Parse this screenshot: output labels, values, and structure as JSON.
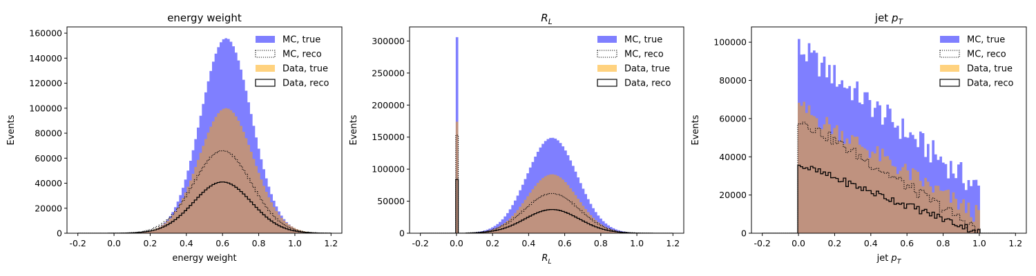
{
  "colors": {
    "mc_true": "#0000ff",
    "data_true": "#ffa500",
    "mc_reco": "#000000",
    "data_reco": "#000000"
  },
  "legend": {
    "placement": "top-right",
    "entries": [
      {
        "key": "mc_true",
        "label": "MC, true",
        "style": "filled"
      },
      {
        "key": "mc_reco",
        "label": "MC, reco",
        "style": "dotted-step"
      },
      {
        "key": "data_true",
        "label": "Data, true",
        "style": "filled"
      },
      {
        "key": "data_reco",
        "label": "Data, reco",
        "style": "solid-step"
      }
    ]
  },
  "chart_data": [
    {
      "type": "histogram",
      "title": "energy weight",
      "xlabel": "energy weight",
      "ylabel": "Events",
      "xlim": [
        -0.26,
        1.26
      ],
      "ylim": [
        0,
        165000
      ],
      "xticks": [
        -0.2,
        0.0,
        0.2,
        0.4,
        0.6,
        0.8,
        1.0,
        1.2
      ],
      "yticks": [
        0,
        20000,
        40000,
        60000,
        80000,
        100000,
        120000,
        140000,
        160000
      ],
      "grid": false,
      "bins": {
        "start": -0.2,
        "end": 1.2,
        "count": 100
      },
      "series": [
        {
          "key": "mc_true",
          "shape": "gaussian",
          "center": 0.62,
          "sigma": 0.14,
          "peak": 156000
        },
        {
          "key": "data_true",
          "shape": "gaussian",
          "center": 0.62,
          "sigma": 0.15,
          "peak": 100000
        },
        {
          "key": "mc_reco",
          "shape": "gaussian",
          "center": 0.6,
          "sigma": 0.16,
          "peak": 66000
        },
        {
          "key": "data_reco",
          "shape": "gaussian",
          "center": 0.6,
          "sigma": 0.16,
          "peak": 41000
        }
      ]
    },
    {
      "type": "histogram",
      "title": "R_L",
      "xlabel": "R_L",
      "ylabel": "Events",
      "xlim": [
        -0.26,
        1.26
      ],
      "ylim": [
        0,
        322000
      ],
      "xticks": [
        -0.2,
        0.0,
        0.2,
        0.4,
        0.6,
        0.8,
        1.0,
        1.2
      ],
      "yticks": [
        0,
        50000,
        100000,
        150000,
        200000,
        250000,
        300000
      ],
      "grid": false,
      "bins": {
        "start": -0.2,
        "end": 1.2,
        "count": 100
      },
      "series": [
        {
          "key": "mc_true",
          "shape": "gaussian",
          "center": 0.53,
          "sigma": 0.14,
          "peak": 149000,
          "spike": {
            "x": 0.0,
            "value": 306000
          },
          "zero_range": [
            0.0,
            0.05
          ]
        },
        {
          "key": "data_true",
          "shape": "gaussian",
          "center": 0.53,
          "sigma": 0.14,
          "peak": 92000,
          "spike": {
            "x": 0.0,
            "value": 174000
          },
          "zero_range": [
            0.0,
            0.05
          ]
        },
        {
          "key": "mc_reco",
          "shape": "gaussian",
          "center": 0.53,
          "sigma": 0.15,
          "peak": 62000,
          "spike": {
            "x": 0.0,
            "value": 153000
          },
          "zero_range": [
            0.0,
            0.05
          ]
        },
        {
          "key": "data_reco",
          "shape": "gaussian",
          "center": 0.53,
          "sigma": 0.15,
          "peak": 37000,
          "spike": {
            "x": 0.0,
            "value": 84000
          },
          "zero_range": [
            0.0,
            0.05
          ]
        }
      ]
    },
    {
      "type": "histogram",
      "title": "jet p_T",
      "xlabel": "jet p_T",
      "ylabel": "Events",
      "xlim": [
        -0.26,
        1.26
      ],
      "ylim": [
        0,
        108000
      ],
      "xticks": [
        -0.2,
        0.0,
        0.2,
        0.4,
        0.6,
        0.8,
        1.0,
        1.2
      ],
      "yticks": [
        0,
        20000,
        40000,
        60000,
        80000,
        100000
      ],
      "grid": false,
      "bins": {
        "start": -0.2,
        "end": 1.2,
        "count": 100
      },
      "series": [
        {
          "key": "mc_true",
          "shape": "falling",
          "support": [
            0.0,
            1.0
          ],
          "start": 97000,
          "end": 23000,
          "noise": 7000
        },
        {
          "key": "data_true",
          "shape": "falling",
          "support": [
            0.0,
            1.0
          ],
          "start": 66000,
          "end": 9000,
          "noise": 5000
        },
        {
          "key": "mc_reco",
          "shape": "falling",
          "support": [
            0.0,
            1.0
          ],
          "start": 60000,
          "end": 1500,
          "noise": 3000
        },
        {
          "key": "data_reco",
          "shape": "falling",
          "support": [
            0.0,
            1.0
          ],
          "start": 36000,
          "end": 500,
          "noise": 2000
        }
      ]
    }
  ]
}
